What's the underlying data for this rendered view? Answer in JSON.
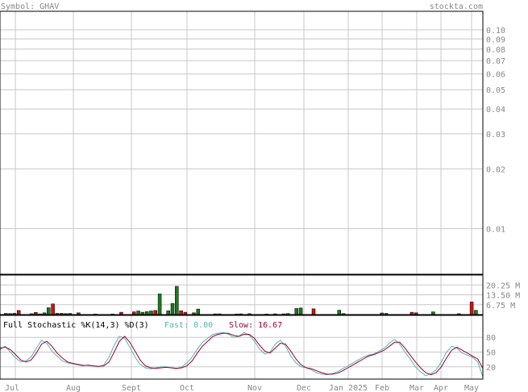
{
  "header": {
    "symbol_label": "Symbol: GHAV",
    "site_label": "stockta.com"
  },
  "colors": {
    "grid": "#c8c8c8",
    "frame": "#000000",
    "label_text": "#888888",
    "volume_up": "#1a7a1a",
    "volume_down": "#cc1111",
    "fast_line": "#55b3b3",
    "slow_line": "#990033",
    "fast_label": "#55b3b3",
    "slow_label": "#990033"
  },
  "chart_data": [
    {
      "type": "line",
      "panel": "price",
      "y_scale": "log",
      "y_ticks": [
        "0.10",
        "0.09",
        "0.08",
        "0.07",
        "0.06",
        "0.05",
        "0.04",
        "0.03",
        "0.02",
        "0.01"
      ],
      "y_tick_values": [
        0.1,
        0.09,
        0.08,
        0.07,
        0.06,
        0.05,
        0.04,
        0.03,
        0.02,
        0.01
      ],
      "ylim": [
        0.0059,
        0.124
      ],
      "x_ticks": [
        "Jul",
        "Aug",
        "Sept",
        "Oct",
        "Nov",
        "Dec",
        "Jan 2025",
        "Feb",
        "Mar",
        "Apr",
        "May"
      ],
      "grid": true
    },
    {
      "type": "bar",
      "panel": "volume",
      "y_ticks": [
        "20.25 M",
        "13.50 M",
        "6.75 M"
      ],
      "y_tick_values": [
        20.25,
        13.5,
        6.75
      ],
      "ylim": [
        0,
        27
      ],
      "unit": "M",
      "bars": [
        {
          "x": 1,
          "v": 0.8,
          "c": "up"
        },
        {
          "x": 2,
          "v": 0.7,
          "c": "up"
        },
        {
          "x": 3,
          "v": 0.9,
          "c": "up"
        },
        {
          "x": 4,
          "v": 2.8,
          "c": "down"
        },
        {
          "x": 7,
          "v": 0.6,
          "c": "up"
        },
        {
          "x": 8,
          "v": 1.5,
          "c": "down"
        },
        {
          "x": 9,
          "v": 0.5,
          "c": "up"
        },
        {
          "x": 10,
          "v": 1.2,
          "c": "up"
        },
        {
          "x": 11,
          "v": 4.7,
          "c": "up"
        },
        {
          "x": 12,
          "v": 7.3,
          "c": "down"
        },
        {
          "x": 13,
          "v": 0.9,
          "c": "down"
        },
        {
          "x": 14,
          "v": 0.9,
          "c": "down"
        },
        {
          "x": 15,
          "v": 0.7,
          "c": "up"
        },
        {
          "x": 16,
          "v": 0.8,
          "c": "up"
        },
        {
          "x": 18,
          "v": 1.2,
          "c": "down"
        },
        {
          "x": 22,
          "v": 0.4,
          "c": "up"
        },
        {
          "x": 26,
          "v": 0.4,
          "c": "up"
        },
        {
          "x": 28,
          "v": 1.6,
          "c": "down"
        },
        {
          "x": 31,
          "v": 1.9,
          "c": "down"
        },
        {
          "x": 32,
          "v": 2.5,
          "c": "up"
        },
        {
          "x": 33,
          "v": 1.6,
          "c": "up"
        },
        {
          "x": 34,
          "v": 2.0,
          "c": "up"
        },
        {
          "x": 35,
          "v": 2.5,
          "c": "up"
        },
        {
          "x": 36,
          "v": 2.8,
          "c": "down"
        },
        {
          "x": 37,
          "v": 14.1,
          "c": "up"
        },
        {
          "x": 39,
          "v": 2.6,
          "c": "up"
        },
        {
          "x": 40,
          "v": 7.6,
          "c": "up"
        },
        {
          "x": 41,
          "v": 19.3,
          "c": "up"
        },
        {
          "x": 42,
          "v": 2.6,
          "c": "down"
        },
        {
          "x": 43,
          "v": 1.6,
          "c": "down"
        },
        {
          "x": 45,
          "v": 1.2,
          "c": "up"
        },
        {
          "x": 46,
          "v": 3.8,
          "c": "up"
        },
        {
          "x": 50,
          "v": 0.5,
          "c": "up"
        },
        {
          "x": 51,
          "v": 0.5,
          "c": "up"
        },
        {
          "x": 55,
          "v": 0.4,
          "c": "down"
        },
        {
          "x": 56,
          "v": 0.5,
          "c": "up"
        },
        {
          "x": 58,
          "v": 0.6,
          "c": "down"
        },
        {
          "x": 62,
          "v": 0.4,
          "c": "up"
        },
        {
          "x": 64,
          "v": 0.5,
          "c": "up"
        },
        {
          "x": 66,
          "v": 0.5,
          "c": "down"
        },
        {
          "x": 67,
          "v": 0.7,
          "c": "up"
        },
        {
          "x": 69,
          "v": 4.2,
          "c": "up"
        },
        {
          "x": 70,
          "v": 4.5,
          "c": "up"
        },
        {
          "x": 73,
          "v": 3.9,
          "c": "down"
        },
        {
          "x": 79,
          "v": 3.0,
          "c": "up"
        },
        {
          "x": 80,
          "v": 0.7,
          "c": "up"
        },
        {
          "x": 89,
          "v": 1.1,
          "c": "up"
        },
        {
          "x": 90,
          "v": 0.8,
          "c": "up"
        },
        {
          "x": 96,
          "v": 1.6,
          "c": "down"
        },
        {
          "x": 97,
          "v": 1.2,
          "c": "down"
        },
        {
          "x": 101,
          "v": 1.9,
          "c": "up"
        },
        {
          "x": 107,
          "v": 0.6,
          "c": "down"
        },
        {
          "x": 110,
          "v": 8.6,
          "c": "down"
        },
        {
          "x": 111,
          "v": 2.9,
          "c": "up"
        }
      ]
    },
    {
      "type": "line",
      "panel": "stochastic",
      "title": "Full Stochastic %K(14,3) %D(3)",
      "fast_label": "Fast: 0.00",
      "slow_label": "Slow: 16.67",
      "y_ticks": [
        "80",
        "50",
        "20"
      ],
      "y_tick_values": [
        80,
        50,
        20
      ],
      "ylim": [
        0,
        100
      ],
      "series": [
        {
          "name": "Fast",
          "values": [
            55,
            62,
            50,
            38,
            30,
            32,
            40,
            58,
            74,
            68,
            52,
            42,
            32,
            28,
            26,
            24,
            22,
            24,
            22,
            20,
            24,
            40,
            64,
            82,
            78,
            60,
            40,
            25,
            18,
            16,
            18,
            20,
            20,
            18,
            16,
            20,
            28,
            40,
            56,
            70,
            78,
            86,
            88,
            90,
            86,
            80,
            82,
            90,
            84,
            72,
            56,
            46,
            50,
            66,
            74,
            62,
            42,
            28,
            20,
            18,
            14,
            8,
            5,
            4,
            6,
            10,
            16,
            22,
            28,
            34,
            40,
            44,
            46,
            52,
            58,
            68,
            76,
            66,
            50,
            36,
            20,
            10,
            2,
            6,
            14,
            30,
            50,
            62,
            58,
            48,
            44,
            40,
            30,
            0
          ]
        },
        {
          "name": "Slow",
          "values": [
            58,
            60,
            55,
            45,
            34,
            30,
            34,
            48,
            66,
            72,
            62,
            48,
            38,
            30,
            27,
            25,
            23,
            23,
            22,
            21,
            22,
            30,
            50,
            72,
            82,
            70,
            52,
            34,
            22,
            18,
            17,
            18,
            19,
            18,
            17,
            18,
            22,
            32,
            48,
            62,
            72,
            82,
            86,
            88,
            88,
            84,
            82,
            86,
            86,
            78,
            64,
            52,
            48,
            58,
            68,
            66,
            52,
            36,
            24,
            18,
            16,
            12,
            8,
            5,
            5,
            7,
            12,
            18,
            24,
            30,
            36,
            42,
            45,
            49,
            54,
            62,
            70,
            70,
            58,
            44,
            30,
            18,
            8,
            4,
            8,
            20,
            38,
            54,
            60,
            54,
            48,
            42,
            36,
            16.67
          ]
        }
      ]
    }
  ]
}
